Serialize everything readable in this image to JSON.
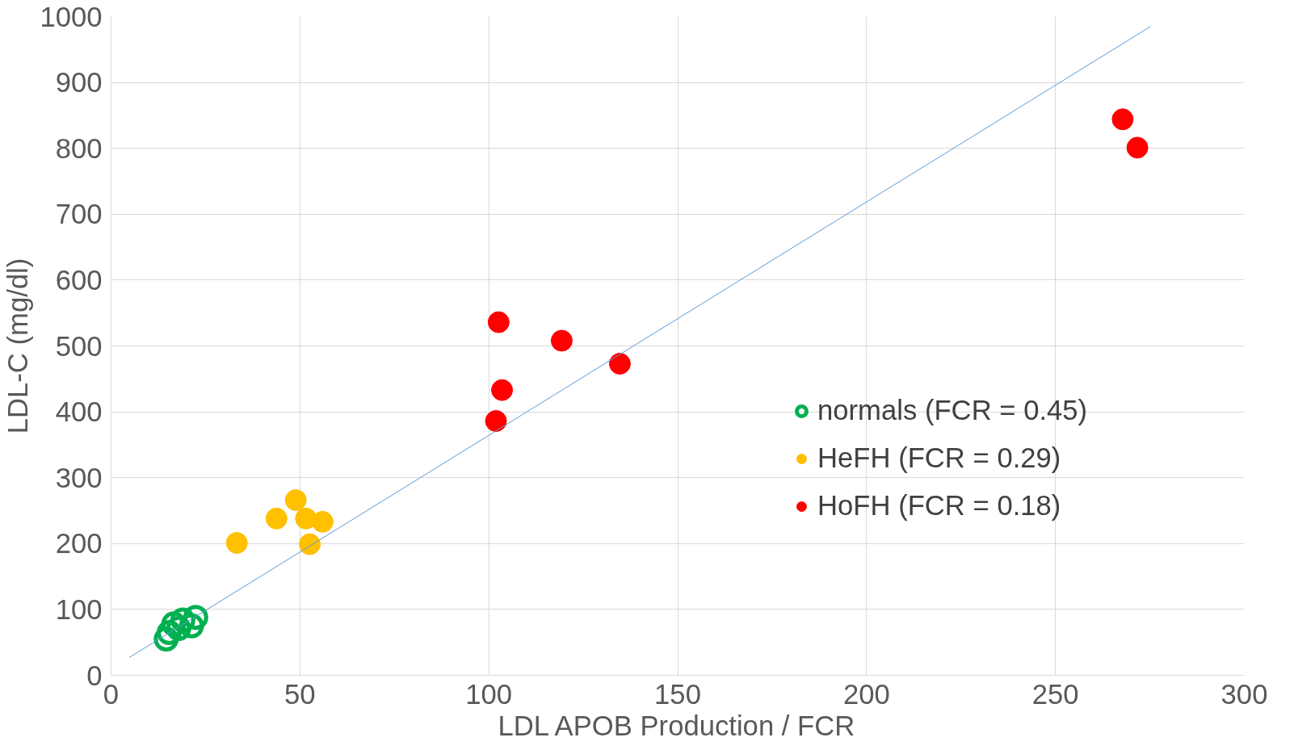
{
  "chart_data": {
    "type": "scatter",
    "xlabel": "LDL APOB Production / FCR",
    "ylabel": "LDL-C (mg/dl)",
    "xlim": [
      0,
      300
    ],
    "xticks": [
      0,
      50,
      100,
      150,
      200,
      250,
      300
    ],
    "ylim": [
      0,
      1000
    ],
    "yticks": [
      0,
      100,
      200,
      300,
      400,
      500,
      600,
      700,
      800,
      900,
      1000
    ],
    "grid": true,
    "legend": "right",
    "series": [
      {
        "name": "normals (FCR = 0.45)",
        "color": "#00b050",
        "marker": "circle_open",
        "x": [
          14.6,
          15.4,
          16.6,
          19,
          22.4,
          21.3,
          17.9
        ],
        "values": [
          55,
          65,
          78,
          84,
          88,
          75,
          71
        ]
      },
      {
        "name": "HeFH (FCR = 0.29)",
        "color": "#ffc000",
        "marker": "circle",
        "x": [
          33.3,
          43.8,
          48.9,
          51.6,
          56,
          52.6
        ],
        "values": [
          201,
          238,
          266,
          238,
          233,
          199
        ]
      },
      {
        "name": "HoFH (FCR = 0.18)",
        "color": "#ff0000",
        "marker": "circle",
        "x": [
          102.6,
          119.3,
          134.7,
          103.5,
          101.9,
          267.8,
          271.7
        ],
        "values": [
          536,
          508,
          473,
          433,
          386,
          844,
          801
        ]
      },
      {
        "type": "line",
        "marker": "none",
        "color": "#5b9bd5",
        "x": [
          4.8,
          275.2
        ],
        "values": [
          27,
          985
        ]
      }
    ]
  }
}
